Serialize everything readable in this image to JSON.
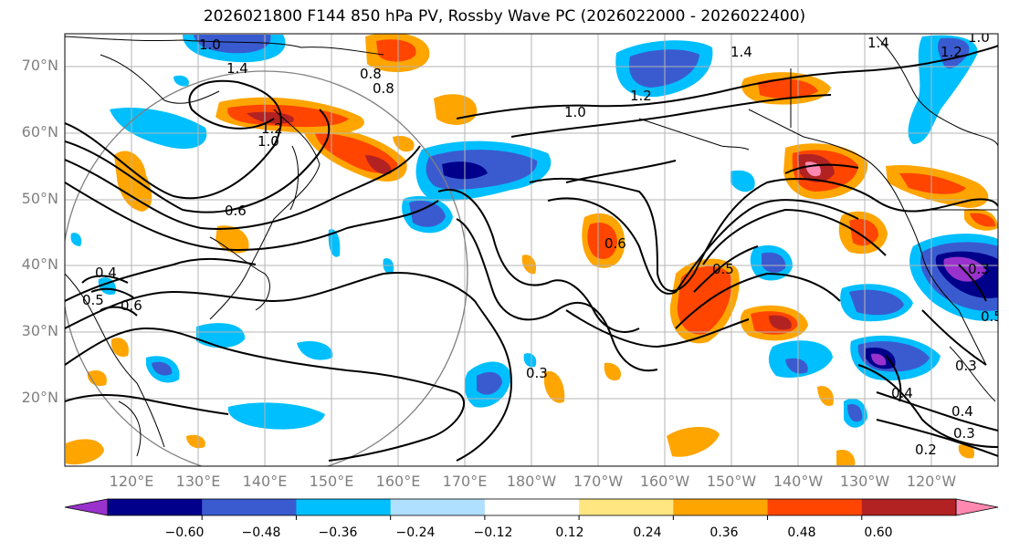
{
  "title": "2026021800 F144 850 hPa PV, Rossby Wave PC (2026022000 - 2026022400)",
  "map": {
    "lat_labels": [
      "70°N",
      "60°N",
      "50°N",
      "40°N",
      "30°N",
      "20°N"
    ],
    "lat_values": [
      70,
      60,
      50,
      40,
      30,
      20
    ],
    "lon_labels": [
      "120°E",
      "130°E",
      "140°E",
      "150°E",
      "160°E",
      "170°E",
      "180°W",
      "170°W",
      "160°W",
      "150°W",
      "140°W",
      "130°W",
      "120°W"
    ],
    "lon_values": [
      120,
      130,
      140,
      150,
      160,
      170,
      180,
      190,
      200,
      210,
      220,
      230,
      240
    ],
    "lon_range": [
      110,
      250
    ],
    "lat_range": [
      10,
      75
    ],
    "contour_labels": [
      "1.0",
      "1.4",
      "0.8",
      "1.0",
      "1.4",
      "1.4",
      "1.2",
      "1.2",
      "1.0",
      "0.8",
      "0.6",
      "0.6",
      "0.5",
      "0.4",
      "0.5",
      "0.6",
      "0.3",
      "0.4",
      "0.3",
      "0.4",
      "0.3",
      "0.2",
      "0.5",
      "0.3",
      "1.2",
      "1.0"
    ]
  },
  "colorbar": {
    "tick_labels": [
      "−0.60",
      "−0.48",
      "−0.36",
      "−0.24",
      "−0.12",
      "0.12",
      "0.24",
      "0.36",
      "0.48",
      "0.60"
    ],
    "colors": [
      "#9932cc",
      "#00008b",
      "#3a5bd0",
      "#00bfff",
      "#b0e0ff",
      "#ffffff",
      "#ffe680",
      "#ffa500",
      "#ff4500",
      "#b22222",
      "#ff88b0"
    ],
    "colors_meaning": "anomaly fill colors from below -0.60 to above 0.60"
  },
  "anomaly_colors": {
    "pos1": "#ffe680",
    "pos2": "#ffa500",
    "pos3": "#ff4500",
    "pos4": "#b22222",
    "pos5": "#ff88b0",
    "neg1": "#b0e0ff",
    "neg2": "#00bfff",
    "neg3": "#3a5bd0",
    "neg4": "#00008b",
    "neg5": "#9932cc"
  }
}
